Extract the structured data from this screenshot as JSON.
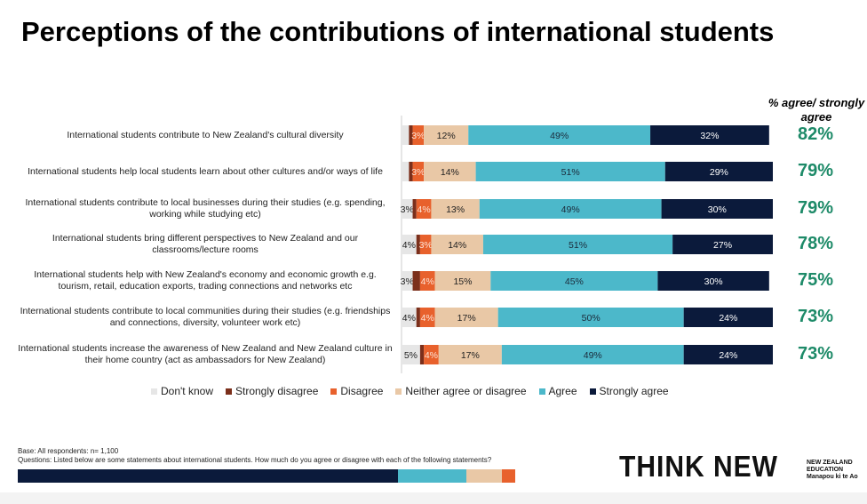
{
  "title": "Perceptions of the contributions of international students",
  "agree_header": "% agree/ strongly agree",
  "chart_data": {
    "type": "bar",
    "orientation": "horizontal-stacked-100",
    "categories": [
      "International students contribute to New Zealand's cultural diversity",
      "International students help local students learn about other cultures and/or ways of life",
      "International students contribute to local businesses during their studies (e.g. spending, working while studying etc)",
      "International students bring different perspectives to New Zealand and our classrooms/lecture rooms",
      "International students help with New Zealand's economy and economic growth e.g. tourism, retail, education exports, trading connections and networks etc",
      "International students contribute to local communities during their studies (e.g. friendships and connections, diversity, volunteer work etc)",
      "International students increase the awareness of New Zealand and New Zealand culture in their home country (act as ambassadors for New Zealand)"
    ],
    "series": [
      {
        "name": "Don't know",
        "color": "#e6e6e6",
        "values": [
          2,
          2,
          3,
          4,
          3,
          4,
          5
        ],
        "labels": [
          "",
          "",
          "3%",
          "4%",
          "3%",
          "4%",
          "5%"
        ]
      },
      {
        "name": "Strongly disagree",
        "color": "#7b2f1b",
        "values": [
          1,
          1,
          1,
          1,
          2,
          1,
          1
        ],
        "labels": [
          "",
          "",
          "",
          "",
          "",
          "",
          ""
        ]
      },
      {
        "name": "Disagree",
        "color": "#e8612c",
        "values": [
          3,
          3,
          4,
          3,
          4,
          4,
          4
        ],
        "labels": [
          "3%",
          "3%",
          "4%",
          "3%",
          "4%",
          "4%",
          "4%"
        ]
      },
      {
        "name": "Neither agree or disagree",
        "color": "#e9c8a6",
        "values": [
          12,
          14,
          13,
          14,
          15,
          17,
          17
        ],
        "labels": [
          "12%",
          "14%",
          "13%",
          "14%",
          "15%",
          "17%",
          "17%"
        ]
      },
      {
        "name": "Agree",
        "color": "#4cb8ca",
        "values": [
          49,
          51,
          49,
          51,
          45,
          50,
          49
        ],
        "labels": [
          "49%",
          "51%",
          "49%",
          "51%",
          "45%",
          "50%",
          "49%"
        ]
      },
      {
        "name": "Strongly agree",
        "color": "#0b1a3b",
        "values": [
          32,
          29,
          30,
          27,
          30,
          24,
          24
        ],
        "labels": [
          "32%",
          "29%",
          "30%",
          "27%",
          "30%",
          "24%",
          "24%"
        ]
      }
    ],
    "agree_totals": [
      "82%",
      "79%",
      "79%",
      "78%",
      "75%",
      "73%",
      "73%"
    ],
    "xlim": [
      0,
      100
    ],
    "legend": "bottom"
  },
  "footer": {
    "base": "Base: All respondents: n= 1,100",
    "question": "Questions: Listed below are some statements about international students. How much do you agree or disagree with each of the following statements?",
    "logo": "THINK NEW",
    "nz_education": "NEW ZEALAND EDUCATION Manapou ki te Ao"
  }
}
